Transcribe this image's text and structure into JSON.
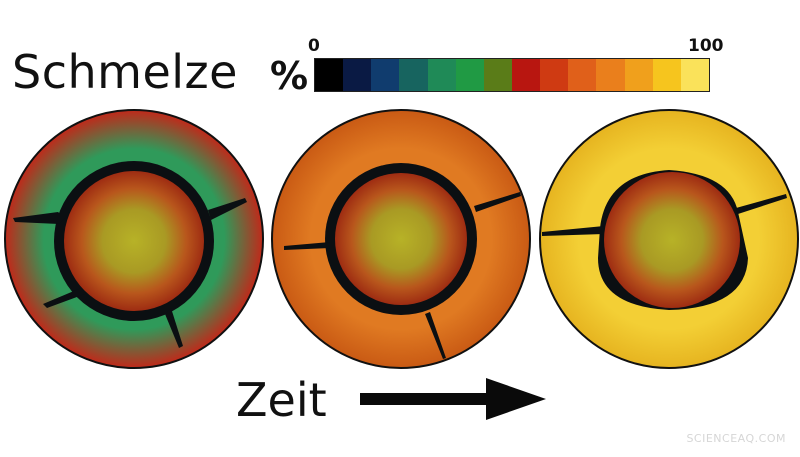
{
  "legend": {
    "title": "Schmelze",
    "unit": "%",
    "scale_min": "0",
    "scale_max": "100",
    "colorbar_colors": [
      "#000000",
      "#0a1a44",
      "#103c6e",
      "#17645f",
      "#1f8a57",
      "#209a44",
      "#5a7c18",
      "#b81610",
      "#cf3a12",
      "#e0601a",
      "#ea7f1c",
      "#f0a01c",
      "#f6c51e",
      "#fae25a"
    ]
  },
  "time_axis": {
    "label": "Zeit"
  },
  "panels": [
    {
      "id": "early",
      "melt_color": "#2f9a5a",
      "melt_edge_color": "#c0291a"
    },
    {
      "id": "middle",
      "melt_color": "#e07a22",
      "melt_edge_color": "#c95a14"
    },
    {
      "id": "late",
      "melt_color": "#f3cf35",
      "melt_edge_color": "#e6b420"
    }
  ],
  "watermark": "SCIENCEAQ.COM"
}
